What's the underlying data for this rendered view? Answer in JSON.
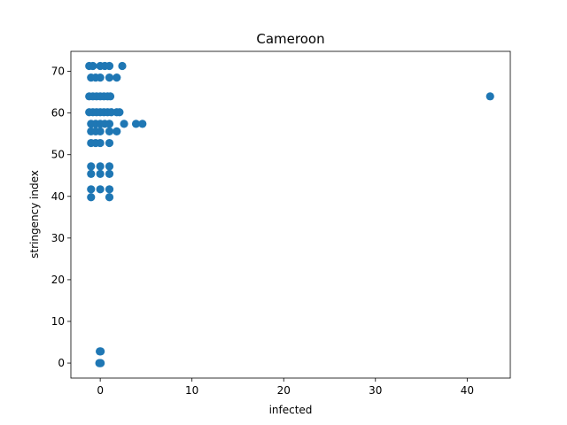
{
  "chart_data": {
    "type": "scatter",
    "title": "Cameroon",
    "xlabel": "infected",
    "ylabel": "stringency index",
    "xlim": [
      -3.2,
      44.7
    ],
    "ylim": [
      -3.6,
      74.8
    ],
    "xticks": [
      0,
      10,
      20,
      30,
      40
    ],
    "yticks": [
      0,
      10,
      20,
      30,
      40,
      50,
      60,
      70
    ],
    "grid": false,
    "legend": "none",
    "point_color": "#1f77b4",
    "points": [
      {
        "x": -0.1,
        "y": 0
      },
      {
        "x": 0,
        "y": 0
      },
      {
        "x": 0.05,
        "y": 0
      },
      {
        "x": -0.05,
        "y": 0
      },
      {
        "x": -0.05,
        "y": 2.8
      },
      {
        "x": 0.05,
        "y": 2.8
      },
      {
        "x": -1,
        "y": 39.8
      },
      {
        "x": 1,
        "y": 39.8
      },
      {
        "x": -1,
        "y": 41.7
      },
      {
        "x": 0,
        "y": 41.7
      },
      {
        "x": 1,
        "y": 41.7
      },
      {
        "x": -1,
        "y": 45.4
      },
      {
        "x": 0,
        "y": 45.4
      },
      {
        "x": 1,
        "y": 45.4
      },
      {
        "x": -1,
        "y": 47.2
      },
      {
        "x": 0,
        "y": 47.2
      },
      {
        "x": 1,
        "y": 47.2
      },
      {
        "x": -1,
        "y": 52.8
      },
      {
        "x": -0.5,
        "y": 52.8
      },
      {
        "x": 0,
        "y": 52.8
      },
      {
        "x": 1,
        "y": 52.8
      },
      {
        "x": -1,
        "y": 55.6
      },
      {
        "x": -0.5,
        "y": 55.6
      },
      {
        "x": 0,
        "y": 55.6
      },
      {
        "x": 1,
        "y": 55.6
      },
      {
        "x": 1.8,
        "y": 55.6
      },
      {
        "x": -1,
        "y": 57.4
      },
      {
        "x": -0.5,
        "y": 57.4
      },
      {
        "x": 0,
        "y": 57.4
      },
      {
        "x": 0.5,
        "y": 57.4
      },
      {
        "x": 1,
        "y": 57.4
      },
      {
        "x": 2.6,
        "y": 57.4
      },
      {
        "x": 3.9,
        "y": 57.4
      },
      {
        "x": 4.6,
        "y": 57.4
      },
      {
        "x": -1.2,
        "y": 60.2
      },
      {
        "x": -0.8,
        "y": 60.2
      },
      {
        "x": -0.4,
        "y": 60.2
      },
      {
        "x": 0,
        "y": 60.2
      },
      {
        "x": 0.4,
        "y": 60.2
      },
      {
        "x": 0.8,
        "y": 60.2
      },
      {
        "x": 1.2,
        "y": 60.2
      },
      {
        "x": 1.8,
        "y": 60.2
      },
      {
        "x": 2.1,
        "y": 60.2
      },
      {
        "x": -1.2,
        "y": 64.0
      },
      {
        "x": -0.8,
        "y": 64.0
      },
      {
        "x": -0.4,
        "y": 64.0
      },
      {
        "x": 0,
        "y": 64.0
      },
      {
        "x": 0.4,
        "y": 64.0
      },
      {
        "x": 0.8,
        "y": 64.0
      },
      {
        "x": 1.1,
        "y": 64.0
      },
      {
        "x": 42.5,
        "y": 64.0
      },
      {
        "x": -1,
        "y": 68.5
      },
      {
        "x": -0.5,
        "y": 68.5
      },
      {
        "x": 0,
        "y": 68.5
      },
      {
        "x": 1,
        "y": 68.5
      },
      {
        "x": 1.8,
        "y": 68.5
      },
      {
        "x": -1.2,
        "y": 71.3
      },
      {
        "x": -0.8,
        "y": 71.3
      },
      {
        "x": 0,
        "y": 71.3
      },
      {
        "x": 0.5,
        "y": 71.3
      },
      {
        "x": 1,
        "y": 71.3
      },
      {
        "x": 2.4,
        "y": 71.3
      }
    ]
  }
}
